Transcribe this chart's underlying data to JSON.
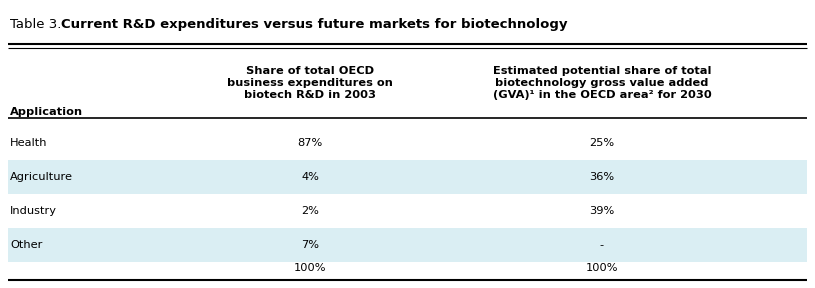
{
  "title_plain": "Table 3. ",
  "title_bold": "Current R&D expenditures versus future markets for biotechnology",
  "col_headers": [
    "Application",
    "Share of total OECD\nbusiness expenditures on\nbiotech R&D in 2003",
    "Estimated potential share of total\nbiotechnology gross value added\n(GVA)¹ in the OECD area² for 2030"
  ],
  "rows": [
    [
      "Health",
      "87%",
      "25%"
    ],
    [
      "Agriculture",
      "4%",
      "36%"
    ],
    [
      "Industry",
      "2%",
      "39%"
    ],
    [
      "Other",
      "7%",
      "-"
    ],
    [
      "",
      "100%",
      "100%"
    ]
  ],
  "row_shading": [
    false,
    true,
    false,
    true,
    false
  ],
  "shading_color": "#daeef3",
  "bg_color": "#ffffff",
  "text_color": "#000000",
  "header_fontsize": 8.2,
  "body_fontsize": 8.2,
  "title_fontsize": 9.5,
  "title_plain_weight": "normal",
  "title_bold_weight": "bold"
}
